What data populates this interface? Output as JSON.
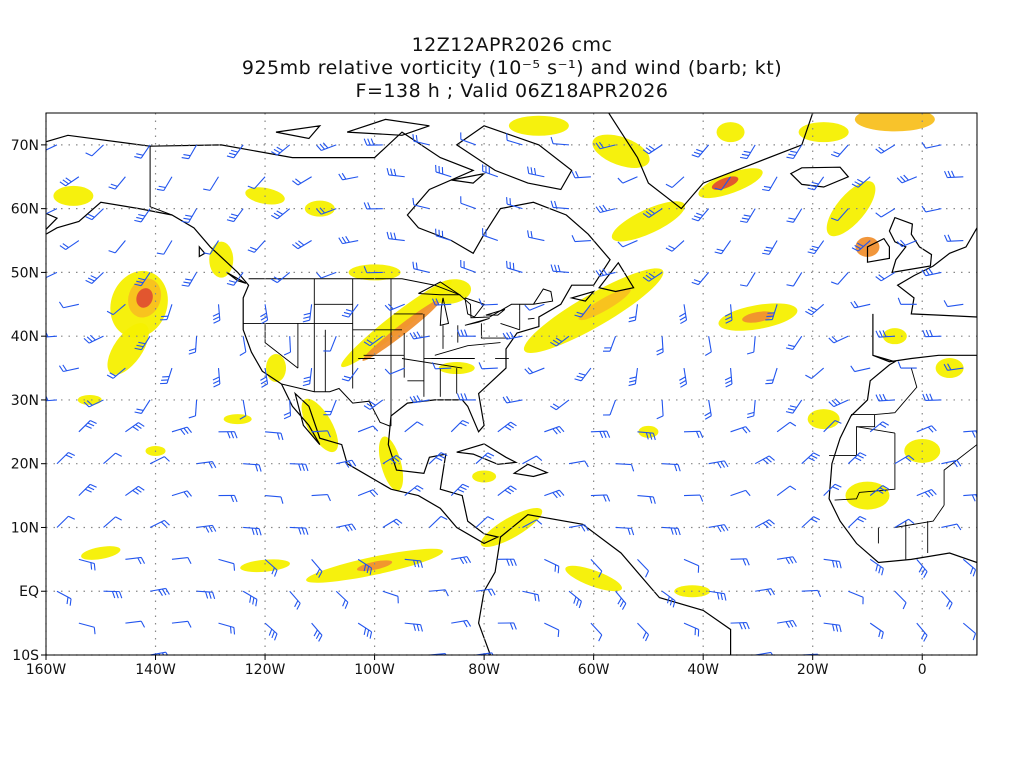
{
  "title": {
    "line1": "12Z12APR2026 cmc",
    "line2": "925mb relative vorticity (10⁻⁵ s⁻¹) and wind (barb; kt)",
    "line3": "F=138 h ; Valid 06Z18APR2026"
  },
  "map": {
    "lon_range": [
      -160,
      10
    ],
    "lat_range": [
      -10,
      75
    ],
    "lon_ticks": [
      {
        "value": -160,
        "label": "160W"
      },
      {
        "value": -140,
        "label": "140W"
      },
      {
        "value": -120,
        "label": "120W"
      },
      {
        "value": -100,
        "label": "100W"
      },
      {
        "value": -80,
        "label": "80W"
      },
      {
        "value": -60,
        "label": "60W"
      },
      {
        "value": -40,
        "label": "40W"
      },
      {
        "value": -20,
        "label": "20W"
      },
      {
        "value": 0,
        "label": "0"
      }
    ],
    "lat_ticks": [
      {
        "value": 70,
        "label": "70N"
      },
      {
        "value": 60,
        "label": "60N"
      },
      {
        "value": 50,
        "label": "50N"
      },
      {
        "value": 40,
        "label": "40N"
      },
      {
        "value": 30,
        "label": "30N"
      },
      {
        "value": 20,
        "label": "20N"
      },
      {
        "value": 10,
        "label": "10N"
      },
      {
        "value": 0,
        "label": "EQ"
      },
      {
        "value": -10,
        "label": "10S"
      }
    ],
    "colors": {
      "level1": "#f5f000",
      "level2": "#f8c020",
      "level3": "#f09030",
      "level4": "#e05030",
      "barb": "#2255ee",
      "coast": "#000000",
      "grid": "#888888"
    }
  }
}
